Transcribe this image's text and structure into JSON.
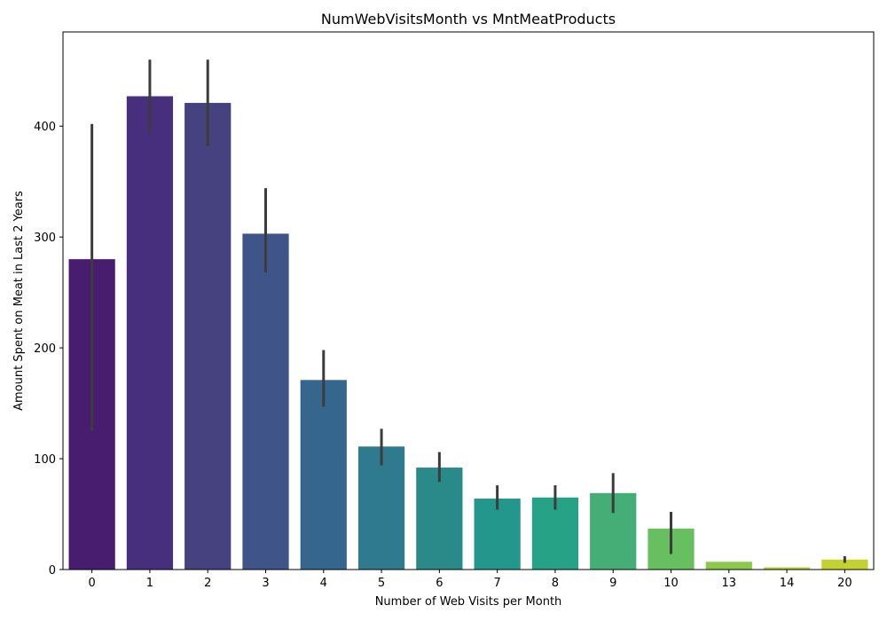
{
  "chart_data": {
    "type": "bar",
    "title": "NumWebVisitsMonth vs MntMeatProducts",
    "xlabel": "Number of Web Visits per Month",
    "ylabel": "Amount Spent on Meat in Last 2 Years",
    "categories": [
      "0",
      "1",
      "2",
      "3",
      "4",
      "5",
      "6",
      "7",
      "8",
      "9",
      "10",
      "13",
      "14",
      "20"
    ],
    "values": [
      280,
      427,
      421,
      303,
      171,
      111,
      92,
      64,
      65,
      69,
      37,
      7,
      2,
      9
    ],
    "error_low": [
      125,
      393,
      382,
      268,
      147,
      94,
      79,
      54,
      54,
      51,
      14,
      7,
      2,
      6
    ],
    "error_high": [
      402,
      460,
      460,
      344,
      198,
      127,
      106,
      76,
      76,
      87,
      52,
      7,
      2,
      12
    ],
    "ylim": [
      0,
      485
    ],
    "yticks": [
      0,
      100,
      200,
      300,
      400
    ],
    "grid": false,
    "colors": [
      "#481c6e",
      "#472f7d",
      "#46427f",
      "#3f558a",
      "#35668d",
      "#2f7a8e",
      "#2a8a8a",
      "#23978b",
      "#26a386",
      "#44ae76",
      "#67bf60",
      "#8cc84b",
      "#b6d133",
      "#c3d22f"
    ],
    "error_color": "#3c3c3c"
  }
}
